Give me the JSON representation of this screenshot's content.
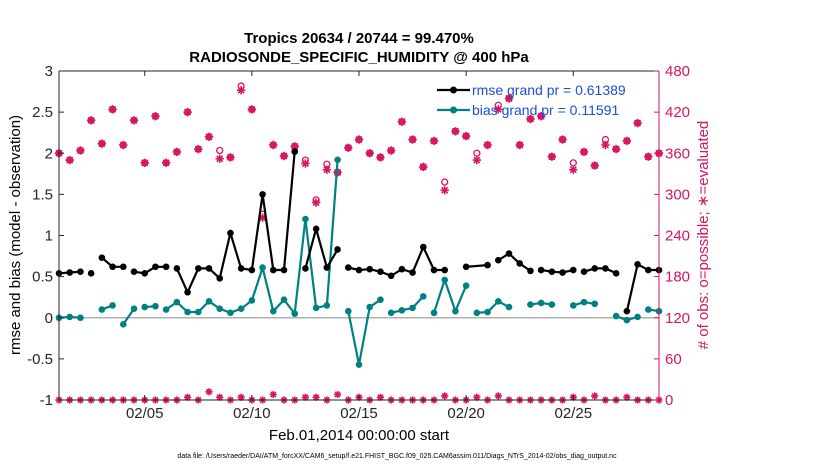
{
  "chart_data": {
    "type": "line",
    "title": "Tropics 20634 / 20744 = 99.470%",
    "subtitle": "RADIOSONDE_SPECIFIC_HUMIDITY @ 400 hPa",
    "xlabel": "Feb.01,2014 00:00:00 start",
    "ylabel_left": "rmse and bias (model - observation)",
    "ylabel_right": "# of obs: o=possible; ∗=evaluated",
    "footnote": "data file: /Users/raeder/DAI/ATM_forcXX/CAM6_setup/f.e21.FHIST_BGC.f09_025.CAM6assim.011/Diags_NTrS_2014-02/obs_diag_output.nc",
    "xlim": [
      1.0,
      29.0
    ],
    "ylim_left": [
      -1,
      3
    ],
    "ylim_right": [
      0,
      480
    ],
    "x_ticks": [
      5,
      10,
      15,
      20,
      25
    ],
    "x_tick_labels": [
      "02/05",
      "02/10",
      "02/15",
      "02/20",
      "02/25"
    ],
    "y_left_ticks": [
      -1,
      -0.5,
      0,
      0.5,
      1,
      1.5,
      2,
      2.5,
      3
    ],
    "y_left_tick_labels": [
      "-1",
      "-0.5",
      "0",
      "0.5",
      "1",
      "1.5",
      "2",
      "2.5",
      "3"
    ],
    "y_right_ticks": [
      0,
      60,
      120,
      180,
      240,
      300,
      360,
      420,
      480
    ],
    "y_right_tick_labels": [
      "0",
      "60",
      "120",
      "180",
      "240",
      "300",
      "360",
      "420",
      "480"
    ],
    "legend": [
      {
        "name": "rmse grand pr = 0.61389",
        "color": "#000000"
      },
      {
        "name": "bias grand pr = 0.11591",
        "color": "#008080"
      }
    ],
    "colors": {
      "rmse": "#000000",
      "bias": "#008080",
      "counts": "#d6165f",
      "zero_line": "#b0b0b0"
    },
    "series": [
      {
        "name": "rmse",
        "segments": [
          {
            "x": [
              1.0,
              1.5,
              2.0
            ],
            "y": [
              0.54,
              0.55,
              0.56
            ]
          },
          {
            "x": [
              2.5
            ],
            "y": [
              0.54
            ]
          },
          {
            "x": [
              3.0,
              3.5,
              4.0
            ],
            "y": [
              0.73,
              0.62,
              0.62
            ]
          },
          {
            "x": [
              4.5,
              5.0,
              5.5,
              6.0
            ],
            "y": [
              0.56,
              0.54,
              0.62,
              0.62
            ]
          },
          {
            "x": [
              6.5,
              7.0,
              7.5,
              8.0,
              8.5,
              9.0,
              9.5,
              10.0,
              10.5,
              11.0,
              11.5,
              12.0
            ],
            "y": [
              0.6,
              0.31,
              0.6,
              0.6,
              0.48,
              1.03,
              0.6,
              0.58,
              1.5,
              0.58,
              0.58,
              2.02
            ]
          },
          {
            "x": [
              12.5,
              13.0,
              13.5,
              14.0
            ],
            "y": [
              0.6,
              1.08,
              0.61,
              0.83
            ]
          },
          {
            "x": [
              14.5,
              15.0,
              15.5,
              16.0,
              16.5,
              17.0,
              17.5,
              18.0,
              18.5,
              19.0
            ],
            "y": [
              0.61,
              0.58,
              0.59,
              0.56,
              0.51,
              0.59,
              0.55,
              0.86,
              0.58,
              0.58
            ]
          },
          {
            "x": [
              20.0,
              21.0
            ],
            "y": [
              0.62,
              0.64
            ]
          },
          {
            "x": [
              21.5,
              22.0,
              22.5,
              23.0
            ],
            "y": [
              0.7,
              0.78,
              0.66,
              0.57
            ]
          },
          {
            "x": [
              23.5,
              24.0,
              24.5,
              25.0
            ],
            "y": [
              0.58,
              0.56,
              0.55,
              0.58
            ]
          },
          {
            "x": [
              25.5,
              26.0,
              26.5,
              27.0
            ],
            "y": [
              0.56,
              0.6,
              0.6,
              0.54
            ]
          },
          {
            "x": [
              27.5,
              28.0,
              28.5,
              29.0
            ],
            "y": [
              0.08,
              0.65,
              0.58,
              0.58
            ]
          }
        ]
      },
      {
        "name": "bias",
        "segments": [
          {
            "x": [
              1.0,
              1.5,
              2.0
            ],
            "y": [
              0.0,
              0.01,
              0.0
            ]
          },
          {
            "x": [
              3.0,
              3.5
            ],
            "y": [
              0.1,
              0.15
            ]
          },
          {
            "x": [
              4.0,
              4.5
            ],
            "y": [
              -0.08,
              0.11
            ]
          },
          {
            "x": [
              5.0,
              5.5
            ],
            "y": [
              0.13,
              0.14
            ]
          },
          {
            "x": [
              6.0,
              6.5,
              7.0,
              7.5,
              8.0,
              8.5,
              9.0,
              9.5,
              10.0,
              10.5,
              11.0,
              11.5,
              12.0,
              12.5,
              13.0,
              13.5,
              14.0
            ],
            "y": [
              0.1,
              0.19,
              0.07,
              0.07,
              0.2,
              0.11,
              0.06,
              0.11,
              0.21,
              0.61,
              0.08,
              0.22,
              0.05,
              1.2,
              0.12,
              0.15,
              1.92
            ]
          },
          {
            "x": [
              14.5,
              15.0,
              15.5,
              16.0
            ],
            "y": [
              0.08,
              -0.57,
              0.13,
              0.22
            ]
          },
          {
            "x": [
              16.5,
              17.0,
              17.5,
              18.0
            ],
            "y": [
              0.06,
              0.09,
              0.12,
              0.26
            ]
          },
          {
            "x": [
              18.5,
              19.0,
              19.5,
              20.0
            ],
            "y": [
              0.06,
              0.46,
              0.08,
              0.39
            ]
          },
          {
            "x": [
              20.5,
              21.0,
              21.5,
              22.0
            ],
            "y": [
              0.06,
              0.07,
              0.2,
              0.13
            ]
          },
          {
            "x": [
              23.0,
              23.5,
              24.0
            ],
            "y": [
              0.16,
              0.18,
              0.16
            ]
          },
          {
            "x": [
              25.0,
              25.5,
              26.0
            ],
            "y": [
              0.15,
              0.19,
              0.17
            ]
          },
          {
            "x": [
              27.0,
              27.5,
              28.0
            ],
            "y": [
              0.02,
              -0.03,
              0.01
            ]
          },
          {
            "x": [
              28.5,
              29.0
            ],
            "y": [
              0.1,
              0.08
            ]
          }
        ]
      },
      {
        "name": "obs_possible",
        "axis": "right",
        "x": [
          1.0,
          1.5,
          2.0,
          2.5,
          3.0,
          3.5,
          4.0,
          4.5,
          5.0,
          5.5,
          6.0,
          6.5,
          7.0,
          7.5,
          8.0,
          8.5,
          9.0,
          9.5,
          10.0,
          10.5,
          11.0,
          11.5,
          12.0,
          12.5,
          13.0,
          13.5,
          14.0,
          14.5,
          15.0,
          15.5,
          16.0,
          16.5,
          17.0,
          17.5,
          18.0,
          18.5,
          19.0,
          19.5,
          20.0,
          20.5,
          21.0,
          21.5,
          22.0,
          22.5,
          23.0,
          23.5,
          24.0,
          24.5,
          25.0,
          25.5,
          26.0,
          26.5,
          27.0,
          27.5,
          28.0,
          28.5,
          29.0
        ],
        "y": [
          360,
          350,
          364,
          408,
          374,
          424,
          372,
          408,
          346,
          414,
          346,
          362,
          420,
          366,
          384,
          364,
          354,
          458,
          424,
          271,
          372,
          356,
          370,
          350,
          292,
          344,
          332,
          368,
          380,
          360,
          354,
          364,
          406,
          380,
          340,
          378,
          318,
          392,
          385,
          360,
          372,
          430,
          440,
          372,
          410,
          414,
          355,
          380,
          346,
          362,
          342,
          380,
          366,
          378,
          404,
          355,
          360
        ]
      },
      {
        "name": "obs_evaluated",
        "axis": "right",
        "x": [
          1.0,
          1.5,
          2.0,
          2.5,
          3.0,
          3.5,
          4.0,
          4.5,
          5.0,
          5.5,
          6.0,
          6.5,
          7.0,
          7.5,
          8.0,
          8.5,
          9.0,
          9.5,
          10.0,
          10.5,
          11.0,
          11.5,
          12.0,
          12.5,
          13.0,
          13.5,
          14.0,
          14.5,
          15.0,
          15.5,
          16.0,
          16.5,
          17.0,
          17.5,
          18.0,
          18.5,
          19.0,
          19.5,
          20.0,
          20.5,
          21.0,
          21.5,
          22.0,
          22.5,
          23.0,
          23.5,
          24.0,
          24.5,
          25.0,
          25.5,
          26.0,
          26.5,
          27.0,
          27.5,
          28.0,
          28.5,
          29.0
        ],
        "y": [
          360,
          350,
          364,
          408,
          374,
          424,
          372,
          408,
          346,
          414,
          346,
          362,
          420,
          366,
          384,
          352,
          354,
          452,
          424,
          266,
          372,
          356,
          370,
          345,
          288,
          336,
          332,
          368,
          380,
          360,
          354,
          364,
          406,
          380,
          340,
          378,
          306,
          392,
          385,
          350,
          372,
          424,
          440,
          372,
          410,
          414,
          355,
          380,
          336,
          362,
          342,
          372,
          366,
          378,
          404,
          355,
          360
        ]
      },
      {
        "name": "obs_rejected",
        "axis": "right",
        "x": [
          1.0,
          1.5,
          2.0,
          2.5,
          3.0,
          3.5,
          4.0,
          4.5,
          5.0,
          5.5,
          6.0,
          6.5,
          7.0,
          7.5,
          8.0,
          8.5,
          9.0,
          9.5,
          10.0,
          10.5,
          11.0,
          11.5,
          12.0,
          12.5,
          13.0,
          13.5,
          14.0,
          14.5,
          15.0,
          15.5,
          16.0,
          16.5,
          17.0,
          17.5,
          18.0,
          18.5,
          19.0,
          19.5,
          20.0,
          20.5,
          21.0,
          21.5,
          22.0,
          22.5,
          23.0,
          23.5,
          24.0,
          24.5,
          25.0,
          25.5,
          26.0,
          26.5,
          27.0,
          27.5,
          28.0,
          28.5,
          29.0
        ],
        "y": [
          0,
          0,
          0,
          0,
          0,
          0,
          0,
          0,
          0,
          0,
          0,
          0,
          4,
          0,
          12,
          4,
          0,
          4,
          0,
          0,
          8,
          0,
          0,
          4,
          4,
          0,
          8,
          0,
          4,
          0,
          4,
          0,
          0,
          0,
          0,
          0,
          6,
          0,
          0,
          4,
          0,
          6,
          0,
          0,
          0,
          0,
          0,
          0,
          4,
          0,
          6,
          0,
          0,
          4,
          0,
          0,
          0
        ]
      }
    ]
  }
}
